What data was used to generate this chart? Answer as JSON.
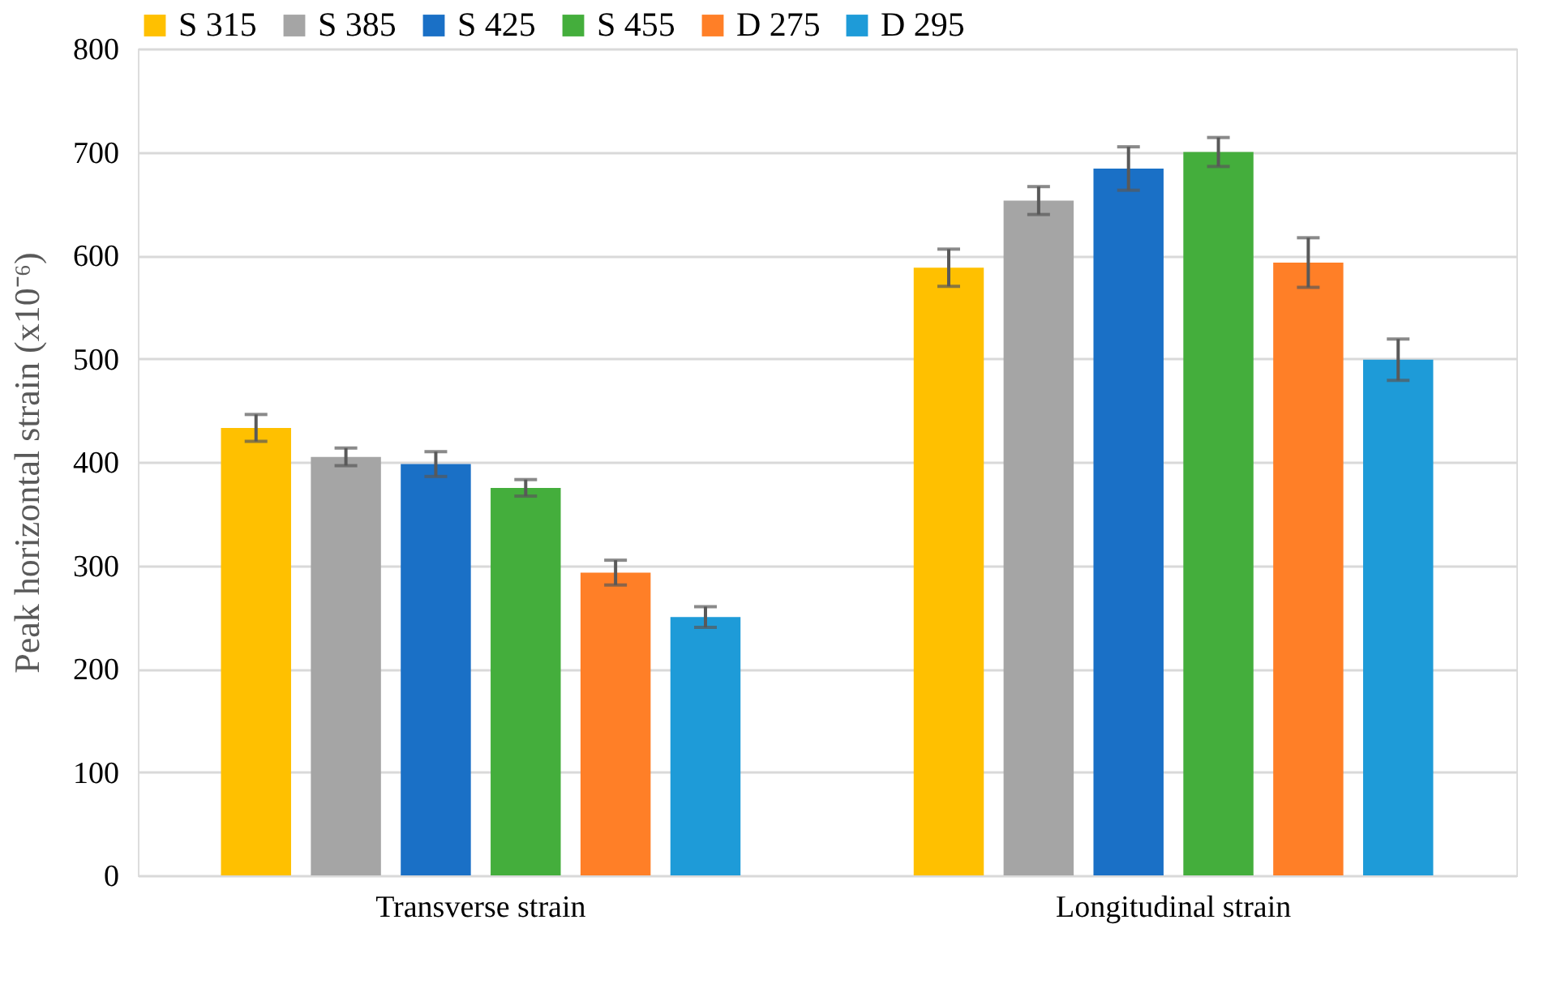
{
  "chart_data": {
    "type": "bar",
    "ylabel": "Peak horizontal strain (x10⁻⁶)",
    "categories": [
      "Transverse strain",
      "Longitudinal strain"
    ],
    "series": [
      {
        "name": "S 315",
        "color": "#ffc000",
        "values": [
          433,
          588
        ],
        "errors": [
          13,
          18
        ]
      },
      {
        "name": "S 385",
        "color": "#a5a5a5",
        "values": [
          405,
          653
        ],
        "errors": [
          8.5,
          13.5
        ]
      },
      {
        "name": "S 425",
        "color": "#1a70c6",
        "values": [
          398,
          684
        ],
        "errors": [
          12,
          21
        ]
      },
      {
        "name": "S 455",
        "color": "#44ae3c",
        "values": [
          375,
          700
        ],
        "errors": [
          8,
          14
        ]
      },
      {
        "name": "D 275",
        "color": "#ff7f27",
        "values": [
          293,
          593
        ],
        "errors": [
          12,
          24
        ]
      },
      {
        "name": "D 295",
        "color": "#1e9bd8",
        "values": [
          250,
          499
        ],
        "errors": [
          10,
          20
        ]
      }
    ],
    "ylim": [
      0,
      800
    ],
    "yticks": [
      0,
      100,
      200,
      300,
      400,
      500,
      600,
      700,
      800
    ],
    "grid": "y",
    "legend": "top"
  }
}
